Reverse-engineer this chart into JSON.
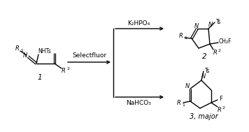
{
  "bg_color": "#ffffff",
  "fig_width": 3.56,
  "fig_height": 1.89,
  "dpi": 100,
  "compound1_label": "1",
  "compound2_label": "2",
  "compound3_label": "3, major",
  "reagent_center": "Selectfluor",
  "reagent_top": "K₂HPO₄",
  "reagent_bottom": "NaHCO₃",
  "line_color": "#000000",
  "text_color": "#000000",
  "bg_color2": "#ffffff",
  "font_size_reagent": 6.5,
  "font_size_label": 7.5,
  "font_size_struct": 6.0,
  "font_size_sub": 4.5,
  "font_size_ts": 5.5
}
